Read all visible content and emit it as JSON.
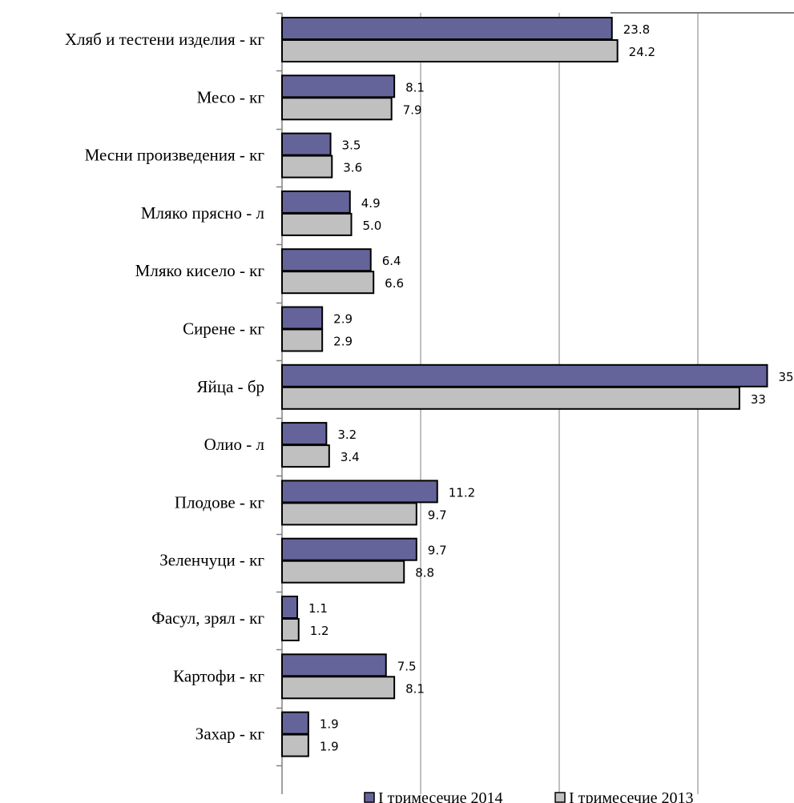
{
  "chart_data": {
    "type": "bar",
    "orientation": "horizontal",
    "categories": [
      "Хляб и тестени изделия - кг",
      "Месо - кг",
      "Месни произведения  - кг",
      "Мляко прясно - л",
      "Мляко кисело - кг",
      "Сирене - кг",
      "Яйца - бр",
      "Олио - л",
      "Плодове - кг",
      "Зеленчуци - кг",
      "Фасул, зрял - кг",
      "Картофи - кг",
      "Захар - кг"
    ],
    "series": [
      {
        "name": "I тримесечие 2014",
        "color": "#65649a",
        "values": [
          23.8,
          8.1,
          3.5,
          4.9,
          6.4,
          2.9,
          35,
          3.2,
          11.2,
          9.7,
          1.1,
          7.5,
          1.9
        ],
        "labels": [
          "23.8",
          "8.1",
          "3.5",
          "4.9",
          "6.4",
          "2.9",
          "35",
          "3.2",
          "11.2",
          "9.7",
          "1.1",
          "7.5",
          "1.9"
        ]
      },
      {
        "name": "I тримесечие 2013",
        "color": "#c0c0c0",
        "values": [
          24.2,
          7.9,
          3.6,
          5.0,
          6.6,
          2.9,
          33,
          3.4,
          9.7,
          8.8,
          1.2,
          8.1,
          1.9
        ],
        "labels": [
          "24.2",
          "7.9",
          "3.6",
          "5.0",
          "6.6",
          "2.9",
          "33",
          "3.4",
          "9.7",
          "8.8",
          "1.2",
          "8.1",
          "1.9"
        ]
      }
    ],
    "xlim": [
      0,
      37
    ],
    "gridlines_x": [
      10,
      20,
      30
    ],
    "legend_position": "bottom",
    "grid": true
  }
}
